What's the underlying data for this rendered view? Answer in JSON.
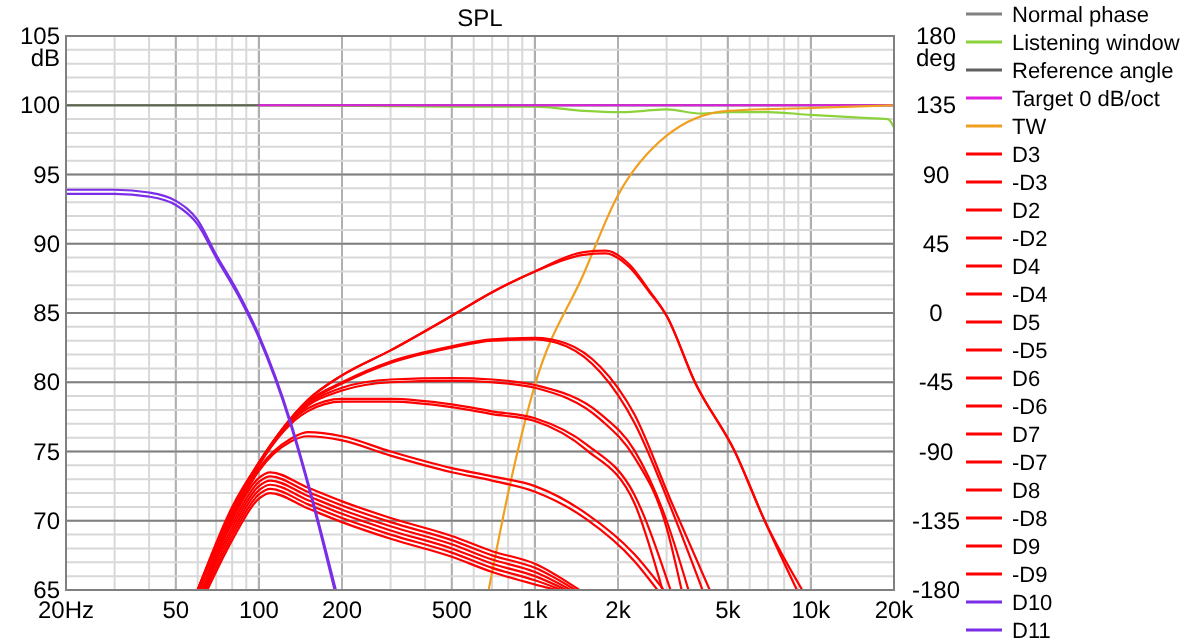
{
  "chart_data": {
    "type": "line",
    "title": "SPL",
    "ylabel": "dB",
    "y2label": "deg",
    "log": "x",
    "grid": true,
    "legend": "right",
    "line_style": "solid",
    "xlim": [
      20,
      20000
    ],
    "xticks": [
      {
        "value": 20,
        "label": "20Hz"
      },
      50,
      100,
      200,
      500,
      {
        "value": 1000,
        "label": "1k"
      },
      {
        "value": 2000,
        "label": "2k"
      },
      {
        "value": 5000,
        "label": "5k"
      },
      {
        "value": 10000,
        "label": "10k"
      },
      {
        "value": 20000,
        "label": "20k"
      }
    ],
    "ylim": [
      65,
      105
    ],
    "yticks": [
      65,
      70,
      75,
      80,
      85,
      90,
      95,
      100,
      105
    ],
    "y2lim": [
      -180,
      180
    ],
    "y2ticks": [
      -180,
      -135,
      -90,
      -45,
      0,
      45,
      90,
      135,
      180
    ],
    "series": [
      {
        "name": "Normal phase",
        "color": "#808080"
      },
      {
        "name": "Listening window",
        "color": "#8cd23c",
        "x": [
          20,
          100,
          500,
          1000,
          1500,
          2000,
          2500,
          3000,
          4000,
          5000,
          7000,
          10000,
          15000,
          19000,
          20000
        ],
        "values": [
          100,
          100,
          99.9,
          99.9,
          99.6,
          99.5,
          99.6,
          99.7,
          99.4,
          99.5,
          99.5,
          99.3,
          99.1,
          99,
          98.4
        ]
      },
      {
        "name": "Reference angle",
        "color": "#606060",
        "x": [
          20,
          100,
          1000,
          20000
        ],
        "values": [
          100,
          100,
          100,
          100
        ]
      },
      {
        "name": "Target 0 dB/oct",
        "color": "#e020e0",
        "x": [
          100,
          1000,
          20000
        ],
        "values": [
          100,
          100,
          100
        ]
      },
      {
        "name": "TW",
        "color": "#f0a020",
        "x": [
          680,
          800,
          1000,
          1500,
          2000,
          3000,
          5000,
          10000,
          20000
        ],
        "values": [
          65,
          72,
          79.8,
          87.8,
          93.5,
          97.8,
          99.6,
          99.8,
          100
        ]
      },
      {
        "name": "D3 ",
        "color": "#ff0000",
        "x": [
          60,
          80,
          100,
          150,
          200,
          300,
          500,
          700,
          1000,
          1300,
          1730,
          2290,
          3100,
          4300
        ],
        "values": [
          65,
          70.8,
          74.2,
          78.6,
          80,
          81.5,
          82.6,
          83.1,
          83.2,
          82.8,
          81.1,
          77.7,
          71.5,
          65
        ]
      },
      {
        "name": "-D3 ",
        "color": "#ff0000",
        "x": [
          64,
          80,
          100,
          150,
          200,
          300,
          500,
          700,
          1000,
          1300,
          1730,
          2290,
          3100,
          4050
        ],
        "values": [
          65,
          70.4,
          74.1,
          78.5,
          79.9,
          81.4,
          82.5,
          83,
          83.1,
          82.6,
          80.7,
          77.1,
          71,
          65
        ]
      },
      {
        "name": "D2 ",
        "color": "#ff0000",
        "x": [
          60,
          80,
          100,
          150,
          200,
          300,
          500,
          700,
          1000,
          1500,
          1800,
          2200,
          2600,
          3000,
          3800,
          5300,
          6800,
          9300
        ],
        "values": [
          65,
          71,
          74.2,
          78.7,
          80.5,
          82.3,
          84.8,
          86.5,
          88,
          89.2,
          89.3,
          88.3,
          86.5,
          84.8,
          80,
          75,
          70,
          65
        ]
      },
      {
        "name": "-D2 ",
        "color": "#ff0000",
        "x": [
          63,
          80,
          100,
          150,
          200,
          300,
          500,
          700,
          1000,
          1500,
          1800,
          2200,
          2600,
          3000,
          3800,
          5300,
          6800,
          8900
        ],
        "values": [
          65,
          70.6,
          74.1,
          78.7,
          80.5,
          82.3,
          84.8,
          86.5,
          88,
          89.4,
          89.5,
          88.5,
          86.6,
          84.8,
          80,
          75,
          70,
          65
        ]
      },
      {
        "name": "D4 ",
        "color": "#ff0000",
        "x": [
          60,
          80,
          100,
          150,
          200,
          300,
          500,
          700,
          1000,
          1730,
          2290,
          3000,
          3600
        ],
        "values": [
          65,
          70.8,
          74.2,
          78.4,
          79.6,
          80.2,
          80.3,
          80.2,
          79.8,
          77.7,
          75.1,
          70,
          65
        ]
      },
      {
        "name": "-D4 ",
        "color": "#ff0000",
        "x": [
          63,
          80,
          100,
          150,
          200,
          300,
          500,
          700,
          1000,
          1730,
          2290,
          3000,
          3400
        ],
        "values": [
          65,
          70.4,
          74.1,
          78.3,
          79.4,
          80,
          80.1,
          80,
          79.6,
          77.3,
          74.6,
          69.5,
          65
        ]
      },
      {
        "name": "D5 ",
        "color": "#ff0000",
        "x": [
          60,
          80,
          100,
          150,
          200,
          300,
          500,
          700,
          1000,
          1540,
          2290,
          3100
        ],
        "values": [
          65,
          70.7,
          74.1,
          78.1,
          78.8,
          78.8,
          78.4,
          77.9,
          77.4,
          75.5,
          71.9,
          65
        ]
      },
      {
        "name": "-D5 ",
        "color": "#ff0000",
        "x": [
          63,
          80,
          100,
          150,
          200,
          300,
          500,
          700,
          1000,
          1540,
          2290,
          2900
        ],
        "values": [
          65,
          70.3,
          74,
          77.9,
          78.6,
          78.6,
          78.2,
          77.7,
          77.2,
          75.1,
          71.3,
          65
        ]
      },
      {
        "name": "D6 ",
        "color": "#ff0000",
        "x": [
          60,
          80,
          100,
          130,
          150,
          200,
          300,
          500,
          700,
          1000,
          1540,
          2290,
          2930
        ],
        "values": [
          65,
          70.5,
          73.8,
          75.9,
          76.4,
          76.1,
          75,
          73.8,
          73.2,
          72.5,
          70.5,
          67.6,
          65
        ]
      },
      {
        "name": "-D6 ",
        "color": "#ff0000",
        "x": [
          63,
          80,
          100,
          130,
          150,
          200,
          300,
          500,
          700,
          1000,
          1540,
          2290,
          2780
        ],
        "values": [
          65,
          70.1,
          73.6,
          75.7,
          76.1,
          75.8,
          74.7,
          73.5,
          72.9,
          72.1,
          70.1,
          67.1,
          65
        ]
      },
      {
        "name": "D7 ",
        "color": "#ff0000",
        "x": [
          62,
          80,
          100,
          110,
          150,
          200,
          300,
          500,
          700,
          1000,
          1350
        ],
        "values": [
          65,
          69.5,
          72.5,
          72.9,
          71.8,
          70.8,
          69.6,
          68.3,
          67.2,
          66.3,
          65
        ]
      },
      {
        "name": "-D7 ",
        "color": "#ff0000",
        "x": [
          63,
          80,
          100,
          110,
          150,
          200,
          300,
          500,
          700,
          1000,
          1300
        ],
        "values": [
          65,
          69.2,
          72.2,
          72.6,
          71.5,
          70.5,
          69.3,
          68,
          66.9,
          66,
          65
        ]
      },
      {
        "name": "D8 ",
        "color": "#ff0000",
        "x": [
          61,
          80,
          100,
          110,
          150,
          200,
          300,
          500,
          700,
          1000,
          1400
        ],
        "values": [
          65,
          69.8,
          72.8,
          73.2,
          72.1,
          71.1,
          69.9,
          68.6,
          67.5,
          66.6,
          65
        ]
      },
      {
        "name": "-D8 ",
        "color": "#ff0000",
        "x": [
          64,
          80,
          100,
          110,
          150,
          200,
          300,
          500,
          700,
          1000,
          1250
        ],
        "values": [
          65,
          68.9,
          71.9,
          72.3,
          71.2,
          70.2,
          69,
          67.7,
          66.6,
          65.7,
          65
        ]
      },
      {
        "name": "D9 ",
        "color": "#ff0000",
        "x": [
          60,
          80,
          100,
          110,
          150,
          200,
          300,
          500,
          700,
          1000,
          1450
        ],
        "values": [
          65,
          70.1,
          73.1,
          73.5,
          72.4,
          71.4,
          70.2,
          68.9,
          67.8,
          66.9,
          65
        ]
      },
      {
        "name": "-D9 ",
        "color": "#ff0000",
        "x": [
          65,
          80,
          100,
          110,
          150,
          200,
          300,
          500,
          700,
          1000,
          1200
        ],
        "values": [
          65,
          68.6,
          71.6,
          72,
          70.9,
          69.9,
          68.7,
          67.4,
          66.3,
          65.4,
          65
        ]
      },
      {
        "name": "D10 ",
        "color": "#7a2ee8",
        "x": [
          20,
          30,
          40,
          50,
          60,
          70,
          85,
          100,
          130,
          150,
          190
        ],
        "values": [
          93.9,
          93.9,
          93.7,
          93.1,
          91.7,
          89.2,
          86.3,
          83.4,
          77.2,
          72.9,
          65
        ]
      },
      {
        "name": "D11 ",
        "color": "#7a2ee8",
        "x": [
          20,
          30,
          40,
          50,
          60,
          70,
          85,
          100,
          130,
          150,
          188
        ],
        "values": [
          93.6,
          93.6,
          93.4,
          92.8,
          91.4,
          89,
          86.1,
          83.2,
          77,
          72.7,
          65
        ]
      }
    ]
  }
}
